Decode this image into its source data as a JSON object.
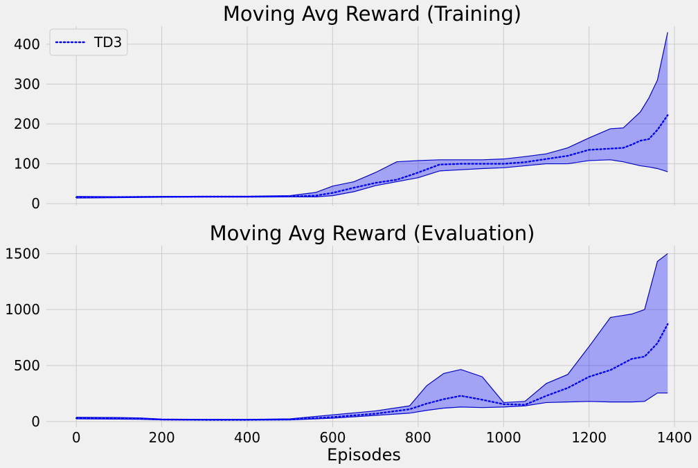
{
  "chart_data": [
    {
      "type": "line",
      "title": "Moving Avg Reward (Training)",
      "xlabel": "",
      "ylabel": "",
      "xlim": [
        -70,
        1455
      ],
      "ylim": [
        -5,
        445
      ],
      "xticks": [
        0,
        200,
        400,
        600,
        800,
        1000,
        1200,
        1400
      ],
      "yticks": [
        0,
        100,
        200,
        300,
        400
      ],
      "grid": true,
      "legend": "top-left",
      "series": [
        {
          "name": "TD3",
          "color": "#0000ff",
          "style": "dotted",
          "x": [
            0,
            100,
            200,
            300,
            400,
            500,
            560,
            600,
            650,
            700,
            750,
            800,
            850,
            900,
            950,
            1000,
            1050,
            1100,
            1150,
            1200,
            1250,
            1280,
            1300,
            1320,
            1340,
            1360,
            1384
          ],
          "y": [
            16,
            16.5,
            17,
            17.5,
            17.5,
            18,
            20,
            27,
            40,
            52,
            60,
            78,
            98,
            100,
            100,
            100,
            104,
            112,
            120,
            135,
            138,
            140,
            148,
            158,
            162,
            185,
            222
          ],
          "upper": [
            18,
            17.5,
            18,
            18.5,
            18.5,
            20,
            28,
            44,
            55,
            78,
            105,
            108,
            110,
            110,
            110,
            112,
            118,
            125,
            140,
            165,
            188,
            190,
            210,
            230,
            265,
            310,
            430
          ],
          "lower": [
            14,
            15,
            16,
            16.5,
            16.5,
            17,
            17,
            20,
            30,
            45,
            55,
            65,
            82,
            85,
            88,
            90,
            95,
            100,
            100,
            108,
            110,
            105,
            100,
            95,
            92,
            88,
            80
          ]
        }
      ]
    },
    {
      "type": "line",
      "title": "Moving Avg Reward (Evaluation)",
      "xlabel": "Episodes",
      "ylabel": "",
      "xlim": [
        -70,
        1455
      ],
      "ylim": [
        -50,
        1570
      ],
      "xticks": [
        0,
        200,
        400,
        600,
        800,
        1000,
        1200,
        1400
      ],
      "yticks": [
        0,
        500,
        1000,
        1500
      ],
      "grid": true,
      "series": [
        {
          "color": "#0000ff",
          "style": "dotted",
          "x": [
            0,
            100,
            150,
            200,
            300,
            400,
            500,
            600,
            700,
            780,
            820,
            860,
            900,
            950,
            1000,
            1050,
            1100,
            1150,
            1200,
            1250,
            1300,
            1330,
            1360,
            1384
          ],
          "y": [
            30,
            28,
            25,
            18,
            15,
            15,
            18,
            40,
            70,
            110,
            160,
            200,
            230,
            195,
            155,
            150,
            230,
            300,
            400,
            460,
            560,
            580,
            700,
            870
          ],
          "upper": [
            38,
            36,
            32,
            22,
            20,
            20,
            24,
            60,
            95,
            140,
            320,
            430,
            465,
            400,
            170,
            180,
            340,
            420,
            670,
            930,
            960,
            1000,
            1430,
            1500
          ],
          "lower": [
            24,
            22,
            20,
            15,
            13,
            13,
            15,
            30,
            55,
            75,
            100,
            120,
            130,
            125,
            130,
            140,
            170,
            175,
            180,
            175,
            175,
            180,
            255,
            255
          ]
        }
      ]
    }
  ]
}
